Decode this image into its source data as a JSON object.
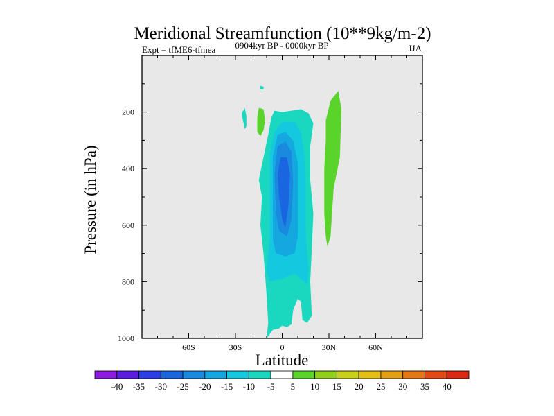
{
  "chart_data": {
    "type": "contour",
    "title": "Meridional Streamfunction (10**9kg/m-2)",
    "left_label": "Expt = tfME6-tfmea",
    "center_label": "0904kyr BP - 0000kyr BP",
    "right_label": "JJA",
    "xlabel": "Latitude",
    "ylabel": "Pressure (in hPa)",
    "xlim": [
      -90,
      90
    ],
    "ylim": [
      0,
      1000
    ],
    "y_reversed": true,
    "x_ticks": [
      {
        "value": -60,
        "label": "60S"
      },
      {
        "value": -30,
        "label": "30S"
      },
      {
        "value": 0,
        "label": "0"
      },
      {
        "value": 30,
        "label": "30N"
      },
      {
        "value": 60,
        "label": "60N"
      }
    ],
    "y_ticks": [
      {
        "value": 200,
        "label": "200"
      },
      {
        "value": 400,
        "label": "400"
      },
      {
        "value": 600,
        "label": "600"
      },
      {
        "value": 800,
        "label": "800"
      },
      {
        "value": 1000,
        "label": "1000"
      }
    ],
    "background_color": "#e8e8e8",
    "colorbar": {
      "labels": [
        "-40",
        "-35",
        "-30",
        "-25",
        "-20",
        "-15",
        "-10",
        "-5",
        "5",
        "10",
        "15",
        "20",
        "25",
        "30",
        "35",
        "40"
      ],
      "colors": [
        "#8b1ce0",
        "#5b1ee0",
        "#2b3ee8",
        "#1a66e0",
        "#1a8ae0",
        "#15a8e0",
        "#14c8e0",
        "#1ad8c0",
        "#ffffff",
        "#5ad42a",
        "#90d018",
        "#c8d018",
        "#e4c014",
        "#e4a014",
        "#e47814",
        "#e44814",
        "#dc2814"
      ]
    },
    "regions": [
      {
        "level": "-5",
        "color": "#1ad8c0",
        "points": [
          [
            -10,
            1000
          ],
          [
            -9,
            945
          ],
          [
            -10,
            850
          ],
          [
            -12,
            700
          ],
          [
            -14,
            600
          ],
          [
            -13,
            500
          ],
          [
            -15,
            440
          ],
          [
            -12,
            360
          ],
          [
            -9,
            280
          ],
          [
            -7,
            220
          ],
          [
            -5,
            195
          ],
          [
            0,
            200
          ],
          [
            6,
            195
          ],
          [
            12,
            190
          ],
          [
            17,
            205
          ],
          [
            20,
            240
          ],
          [
            18,
            320
          ],
          [
            18,
            440
          ],
          [
            20,
            560
          ],
          [
            19,
            680
          ],
          [
            18,
            800
          ],
          [
            19,
            920
          ],
          [
            16,
            945
          ],
          [
            13,
            935
          ],
          [
            12,
            870
          ],
          [
            10,
            860
          ],
          [
            7,
            900
          ],
          [
            6,
            950
          ],
          [
            3,
            960
          ],
          [
            0,
            955
          ],
          [
            -2,
            965
          ],
          [
            -6,
            970
          ]
        ]
      },
      {
        "level": "-5",
        "color": "#1ad8c0",
        "points": [
          [
            -26,
            205
          ],
          [
            -24,
            185
          ],
          [
            -23,
            215
          ],
          [
            -23,
            250
          ],
          [
            -24,
            260
          ],
          [
            -25,
            235
          ]
        ]
      },
      {
        "level": "-5",
        "color": "#1ad8c0",
        "points": [
          [
            -14,
            107
          ],
          [
            -12,
            110
          ],
          [
            -12,
            120
          ],
          [
            -14,
            120
          ]
        ]
      },
      {
        "level": "-10",
        "color": "#14c8e0",
        "points": [
          [
            -10,
            760
          ],
          [
            -8,
            650
          ],
          [
            -8,
            480
          ],
          [
            -8,
            350
          ],
          [
            -5,
            270
          ],
          [
            0,
            235
          ],
          [
            8,
            235
          ],
          [
            12,
            270
          ],
          [
            14,
            350
          ],
          [
            15,
            450
          ],
          [
            15,
            600
          ],
          [
            16,
            700
          ],
          [
            17,
            760
          ],
          [
            16,
            810
          ],
          [
            12,
            790
          ],
          [
            8,
            770
          ],
          [
            0,
            790
          ],
          [
            -8,
            800
          ]
        ]
      },
      {
        "level": "-15",
        "color": "#15a8e0",
        "points": [
          [
            -6,
            650
          ],
          [
            -6,
            480
          ],
          [
            -6,
            360
          ],
          [
            -3,
            280
          ],
          [
            2,
            270
          ],
          [
            7,
            300
          ],
          [
            10,
            380
          ],
          [
            10,
            500
          ],
          [
            10,
            640
          ],
          [
            8,
            700
          ],
          [
            2,
            710
          ],
          [
            -4,
            700
          ]
        ]
      },
      {
        "level": "-20",
        "color": "#1a8ae0",
        "points": [
          [
            -4,
            560
          ],
          [
            -5,
            420
          ],
          [
            -3,
            320
          ],
          [
            2,
            305
          ],
          [
            6,
            340
          ],
          [
            7,
            450
          ],
          [
            6,
            580
          ],
          [
            3,
            640
          ],
          [
            -2,
            620
          ]
        ]
      },
      {
        "level": "-25",
        "color": "#1a66e0",
        "points": [
          [
            -2,
            500
          ],
          [
            -3,
            420
          ],
          [
            -1,
            360
          ],
          [
            3,
            360
          ],
          [
            5,
            420
          ],
          [
            4,
            530
          ],
          [
            2,
            610
          ],
          [
            0,
            580
          ]
        ]
      },
      {
        "level": "5",
        "color": "#5ad42a",
        "points": [
          [
            28,
            640
          ],
          [
            27,
            560
          ],
          [
            27,
            400
          ],
          [
            28,
            300
          ],
          [
            28,
            230
          ],
          [
            31,
            160
          ],
          [
            36,
            125
          ],
          [
            38,
            190
          ],
          [
            37,
            360
          ],
          [
            33,
            470
          ],
          [
            31,
            640
          ],
          [
            29,
            675
          ]
        ]
      },
      {
        "level": "5",
        "color": "#5ad42a",
        "points": [
          [
            -16,
            270
          ],
          [
            -16,
            220
          ],
          [
            -15,
            185
          ],
          [
            -12,
            190
          ],
          [
            -11,
            230
          ],
          [
            -12,
            265
          ],
          [
            -14,
            285
          ]
        ]
      }
    ]
  }
}
